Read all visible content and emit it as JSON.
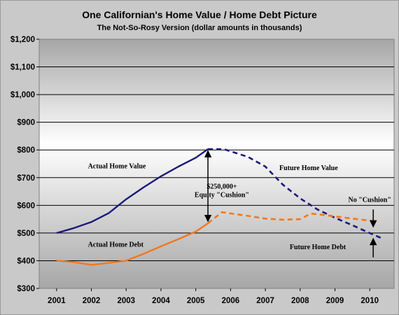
{
  "chart_data": {
    "type": "line",
    "title": "One Californian's Home Value / Home Debt Picture",
    "subtitle": "The Not-So-Rosy Version (dollar amounts in thousands)",
    "xlabel": "",
    "ylabel": "",
    "ylim": [
      300,
      1200
    ],
    "y_ticks": [
      "$300",
      "$400",
      "$500",
      "$600",
      "$700",
      "$800",
      "$900",
      "$1,000",
      "$1,100",
      "$1,200"
    ],
    "x_ticks": [
      "2001",
      "2002",
      "2003",
      "2004",
      "2005",
      "2006",
      "2007",
      "2008",
      "2009",
      "2010"
    ],
    "grid": true,
    "series": [
      {
        "color": "#1a1a7a",
        "style": "solid",
        "points": [
          [
            2001,
            500
          ],
          [
            2001.5,
            518
          ],
          [
            2002,
            540
          ],
          [
            2002.5,
            572
          ],
          [
            2003,
            622
          ],
          [
            2003.5,
            665
          ],
          [
            2004,
            705
          ],
          [
            2004.5,
            740
          ],
          [
            2005,
            772
          ],
          [
            2005.35,
            803
          ]
        ]
      },
      {
        "color": "#1a1a7a",
        "style": "dashed",
        "points": [
          [
            2005.35,
            803
          ],
          [
            2005.8,
            803
          ],
          [
            2006.5,
            775
          ],
          [
            2007,
            740
          ],
          [
            2007.5,
            675
          ],
          [
            2008,
            625
          ],
          [
            2008.5,
            585
          ],
          [
            2009,
            555
          ],
          [
            2009.5,
            528
          ],
          [
            2010,
            500
          ],
          [
            2010.4,
            478
          ]
        ]
      },
      {
        "color": "#f07820",
        "style": "solid",
        "points": [
          [
            2001,
            400
          ],
          [
            2001.5,
            395
          ],
          [
            2002,
            385
          ],
          [
            2002.5,
            392
          ],
          [
            2003,
            400
          ],
          [
            2003.5,
            425
          ],
          [
            2004,
            452
          ],
          [
            2004.5,
            478
          ],
          [
            2005,
            505
          ],
          [
            2005.35,
            535
          ]
        ]
      },
      {
        "color": "#f07820",
        "style": "dashed",
        "points": [
          [
            2005.35,
            535
          ],
          [
            2005.75,
            575
          ],
          [
            2006.5,
            562
          ],
          [
            2007,
            552
          ],
          [
            2007.5,
            548
          ],
          [
            2008,
            550
          ],
          [
            2008.3,
            570
          ],
          [
            2008.5,
            568
          ],
          [
            2009,
            560
          ],
          [
            2009.5,
            552
          ],
          [
            2010,
            545
          ],
          [
            2010.2,
            543
          ]
        ]
      }
    ],
    "annotations": [
      {
        "id": "actual-home-value",
        "text": "Actual Home Value",
        "x": 2001.9,
        "y": 733
      },
      {
        "id": "future-home-value",
        "text": "Future Home Value",
        "x": 2007.4,
        "y": 727
      },
      {
        "id": "equity-amount",
        "text": "$250,000+",
        "x": 2005.75,
        "y": 660
      },
      {
        "id": "equity-cushion",
        "text": "Equity \"Cushion\"",
        "x": 2005.75,
        "y": 630
      },
      {
        "id": "no-cushion",
        "text": "No \"Cushion\"",
        "x": 2010.0,
        "y": 612
      },
      {
        "id": "actual-home-debt",
        "text": "Actual Home Debt",
        "x": 2001.9,
        "y": 450
      },
      {
        "id": "future-home-debt",
        "text": "Future Home Debt",
        "x": 2007.7,
        "y": 442
      }
    ],
    "arrows": [
      {
        "id": "equity-arrow",
        "x": 2005.35,
        "y_from": 797,
        "y_to": 542,
        "heads": "both"
      },
      {
        "id": "no-cushion-arrow-down",
        "x": 2010.1,
        "y_from": 585,
        "y_to": 522,
        "heads": "end"
      },
      {
        "id": "no-cushion-arrow-up",
        "x": 2010.1,
        "y_from": 412,
        "y_to": 480,
        "heads": "end"
      }
    ]
  }
}
